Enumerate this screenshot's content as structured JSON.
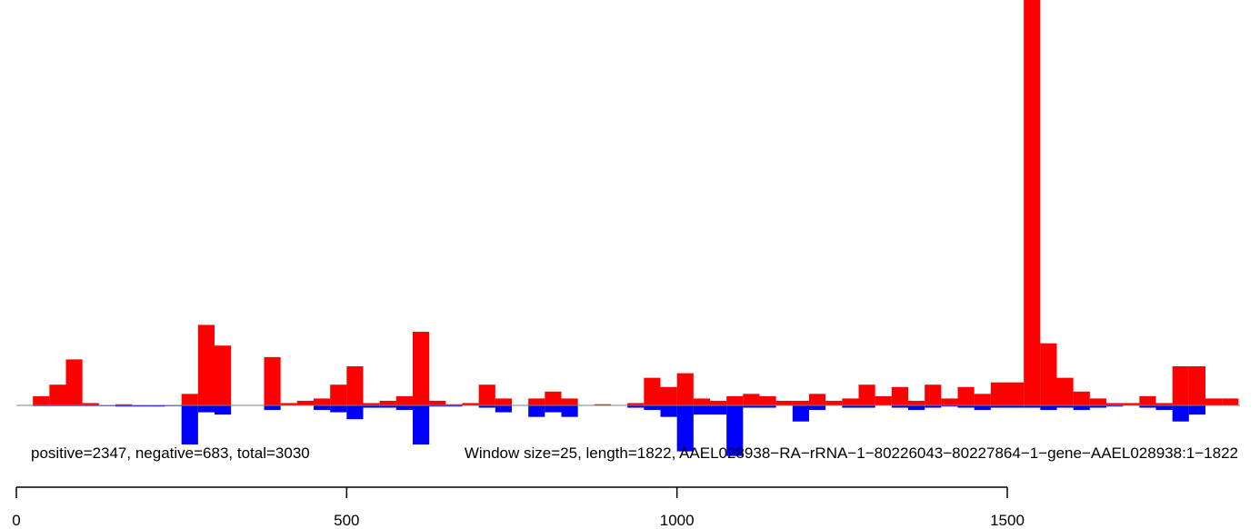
{
  "chart_data": {
    "type": "bar",
    "title": "",
    "xlabel": "",
    "ylabel": "",
    "xlim": [
      0,
      1850
    ],
    "x_ticks": [
      0,
      500,
      1000,
      1500
    ],
    "x_tick_labels": [
      "0",
      "500",
      "1000",
      "1500"
    ],
    "bin_width": 25,
    "positive_color": "#ff0000",
    "negative_color": "#0000ff",
    "caption_left": "positive=2347, negative=683, total=3030",
    "caption_right": "Window size=25, length=1822, AAEL028938−RA−rRNA−1−80226043−80227864−1−gene−AAEL028938:1−1822",
    "series": [
      {
        "name": "positive",
        "bins": [
          [
            25,
            4
          ],
          [
            50,
            9
          ],
          [
            75,
            20
          ],
          [
            100,
            1
          ],
          [
            150,
            0.5
          ],
          [
            250,
            5
          ],
          [
            275,
            35
          ],
          [
            300,
            26
          ],
          [
            325,
            0
          ],
          [
            350,
            0
          ],
          [
            375,
            21
          ],
          [
            400,
            1
          ],
          [
            425,
            2
          ],
          [
            450,
            3
          ],
          [
            475,
            9
          ],
          [
            500,
            17
          ],
          [
            525,
            1
          ],
          [
            550,
            2
          ],
          [
            575,
            4
          ],
          [
            600,
            32
          ],
          [
            625,
            2
          ],
          [
            650,
            0.5
          ],
          [
            675,
            1
          ],
          [
            700,
            9
          ],
          [
            725,
            3
          ],
          [
            775,
            3
          ],
          [
            800,
            6
          ],
          [
            825,
            3
          ],
          [
            875,
            0.5
          ],
          [
            925,
            1
          ],
          [
            950,
            12
          ],
          [
            975,
            8
          ],
          [
            1000,
            14
          ],
          [
            1025,
            3
          ],
          [
            1050,
            2
          ],
          [
            1075,
            4
          ],
          [
            1100,
            5
          ],
          [
            1125,
            4
          ],
          [
            1150,
            2
          ],
          [
            1175,
            2
          ],
          [
            1200,
            5
          ],
          [
            1225,
            2
          ],
          [
            1250,
            3
          ],
          [
            1275,
            9
          ],
          [
            1300,
            4
          ],
          [
            1325,
            8
          ],
          [
            1350,
            2
          ],
          [
            1375,
            9
          ],
          [
            1400,
            3
          ],
          [
            1425,
            8
          ],
          [
            1450,
            5
          ],
          [
            1475,
            10
          ],
          [
            1500,
            10
          ],
          [
            1525,
            180
          ],
          [
            1550,
            27
          ],
          [
            1575,
            12
          ],
          [
            1600,
            6
          ],
          [
            1625,
            3
          ],
          [
            1650,
            1
          ],
          [
            1675,
            1
          ],
          [
            1700,
            4
          ],
          [
            1725,
            1
          ],
          [
            1750,
            17
          ],
          [
            1775,
            17
          ],
          [
            1800,
            3
          ],
          [
            1825,
            3
          ]
        ]
      },
      {
        "name": "negative",
        "bins": [
          [
            25,
            0
          ],
          [
            50,
            0
          ],
          [
            75,
            0
          ],
          [
            100,
            0
          ],
          [
            125,
            0
          ],
          [
            150,
            0.5
          ],
          [
            175,
            0.5
          ],
          [
            200,
            0.5
          ],
          [
            225,
            0
          ],
          [
            250,
            17
          ],
          [
            275,
            3
          ],
          [
            300,
            4
          ],
          [
            375,
            2
          ],
          [
            450,
            2
          ],
          [
            475,
            3
          ],
          [
            500,
            6
          ],
          [
            525,
            1
          ],
          [
            550,
            1
          ],
          [
            575,
            2
          ],
          [
            600,
            17
          ],
          [
            625,
            0.5
          ],
          [
            650,
            0.5
          ],
          [
            700,
            1
          ],
          [
            725,
            3
          ],
          [
            775,
            5
          ],
          [
            800,
            3
          ],
          [
            825,
            5
          ],
          [
            925,
            1
          ],
          [
            950,
            2
          ],
          [
            975,
            5
          ],
          [
            1000,
            20
          ],
          [
            1025,
            4
          ],
          [
            1050,
            4
          ],
          [
            1075,
            22
          ],
          [
            1100,
            1
          ],
          [
            1125,
            1
          ],
          [
            1175,
            7
          ],
          [
            1200,
            2
          ],
          [
            1250,
            1
          ],
          [
            1275,
            1
          ],
          [
            1325,
            1
          ],
          [
            1350,
            2
          ],
          [
            1375,
            1
          ],
          [
            1400,
            0.5
          ],
          [
            1425,
            1
          ],
          [
            1450,
            2
          ],
          [
            1475,
            1
          ],
          [
            1500,
            1
          ],
          [
            1525,
            1
          ],
          [
            1550,
            2
          ],
          [
            1575,
            1
          ],
          [
            1600,
            2
          ],
          [
            1625,
            1
          ],
          [
            1650,
            0.5
          ],
          [
            1700,
            1
          ],
          [
            1725,
            2
          ],
          [
            1750,
            7
          ],
          [
            1775,
            4
          ]
        ]
      }
    ]
  }
}
